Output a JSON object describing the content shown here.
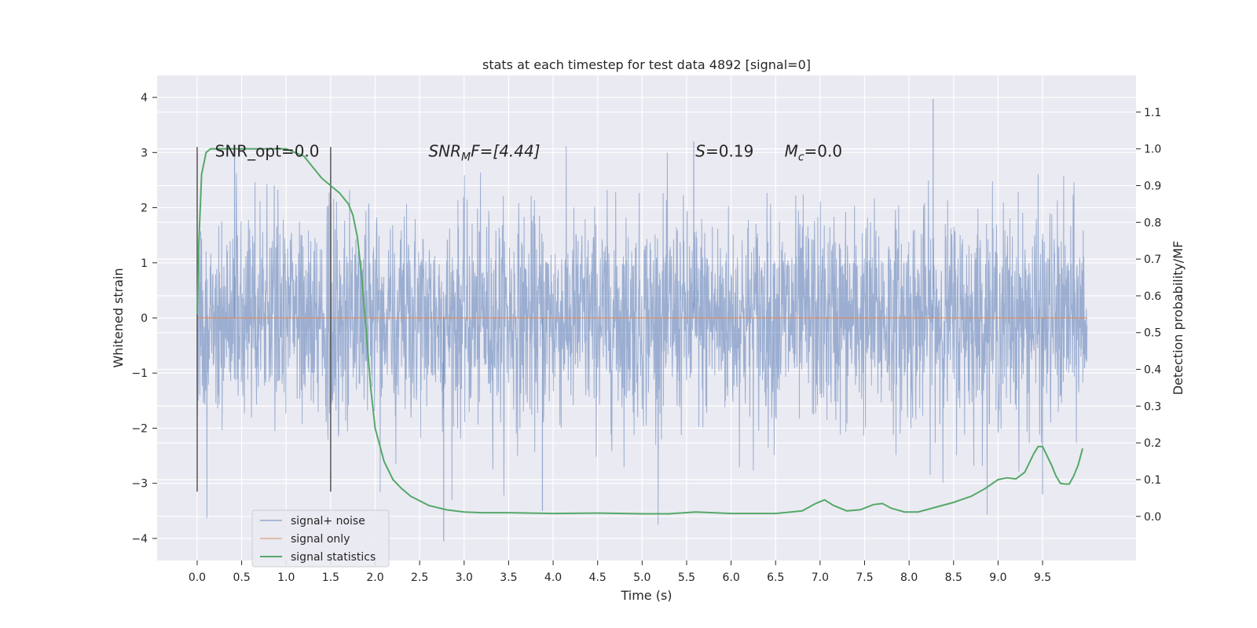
{
  "chart_data": {
    "type": "line",
    "title": "stats at each timestep for test data 4892 [signal=0]",
    "xlabel": "Time (s)",
    "ylabel": "Whitened strain",
    "y2label": "Detection probability/MF",
    "xlim": [
      -0.45,
      10.55
    ],
    "ylim": [
      -4.4,
      4.4
    ],
    "y2lim": [
      -0.12,
      1.2
    ],
    "xticks": [
      "0.0",
      "0.5",
      "1.0",
      "1.5",
      "2.0",
      "2.5",
      "3.0",
      "3.5",
      "4.0",
      "4.5",
      "5.0",
      "5.5",
      "6.0",
      "6.5",
      "7.0",
      "7.5",
      "8.0",
      "8.5",
      "9.0",
      "9.5"
    ],
    "yticks": [
      "4",
      "3",
      "2",
      "1",
      "0",
      "−1",
      "−2",
      "−3",
      "−4"
    ],
    "y2ticks": [
      "1.1",
      "1.0",
      "0.9",
      "0.8",
      "0.7",
      "0.6",
      "0.5",
      "0.4",
      "0.3",
      "0.2",
      "0.1",
      "0.0"
    ],
    "grid": true,
    "legend_position": "lower-left",
    "colors": {
      "background": "#eaeaf2",
      "noise": "#4c72b0",
      "signal": "#dd8452",
      "stats": "#55a868",
      "vline": "#555555"
    },
    "series": [
      {
        "name": "signal+ noise",
        "type": "noise",
        "x_range": [
          0.0,
          10.0
        ],
        "envelope_typical": 2.3,
        "peak_max": 3.97,
        "trough_min": -4.05
      },
      {
        "name": "signal only",
        "type": "line",
        "x": [
          0.0,
          10.0
        ],
        "y": [
          0.0,
          0.0
        ]
      },
      {
        "name": "signal statistics",
        "axis": "right",
        "type": "line",
        "x": [
          0.0,
          0.02,
          0.05,
          0.1,
          0.15,
          0.2,
          0.3,
          0.5,
          0.8,
          1.0,
          1.1,
          1.2,
          1.3,
          1.4,
          1.5,
          1.6,
          1.7,
          1.75,
          1.8,
          1.85,
          1.9,
          1.95,
          2.0,
          2.1,
          2.2,
          2.3,
          2.4,
          2.6,
          2.8,
          3.0,
          3.2,
          3.5,
          4.0,
          4.5,
          5.0,
          5.3,
          5.6,
          6.0,
          6.5,
          6.8,
          6.95,
          7.05,
          7.15,
          7.3,
          7.45,
          7.6,
          7.7,
          7.8,
          7.95,
          8.1,
          8.3,
          8.5,
          8.7,
          8.85,
          9.0,
          9.1,
          9.2,
          9.3,
          9.4,
          9.45,
          9.5,
          9.6,
          9.65,
          9.7,
          9.75,
          9.8,
          9.85,
          9.9,
          9.95
        ],
        "y": [
          0.55,
          0.75,
          0.93,
          0.99,
          1.0,
          1.0,
          1.0,
          1.0,
          1.0,
          1.0,
          0.99,
          0.98,
          0.95,
          0.92,
          0.9,
          0.88,
          0.85,
          0.82,
          0.76,
          0.65,
          0.5,
          0.35,
          0.24,
          0.15,
          0.1,
          0.075,
          0.055,
          0.03,
          0.018,
          0.012,
          0.01,
          0.01,
          0.008,
          0.009,
          0.007,
          0.007,
          0.012,
          0.008,
          0.008,
          0.015,
          0.035,
          0.045,
          0.03,
          0.015,
          0.018,
          0.032,
          0.035,
          0.022,
          0.012,
          0.012,
          0.025,
          0.038,
          0.055,
          0.075,
          0.1,
          0.105,
          0.102,
          0.12,
          0.17,
          0.19,
          0.19,
          0.14,
          0.11,
          0.09,
          0.088,
          0.088,
          0.11,
          0.14,
          0.185
        ]
      }
    ],
    "vlines": [
      {
        "x": 0.0,
        "ymin": -3.15,
        "ymax": 3.1
      },
      {
        "x": 1.5,
        "ymin": -3.15,
        "ymax": 3.1
      }
    ],
    "annotations": {
      "snr_opt": {
        "x": 0.2,
        "y": 3.0,
        "text": "SNR_opt=0.0"
      },
      "snr_mf": {
        "x": 2.6,
        "y": 3.0,
        "label": "SNR",
        "sub": "M",
        "tail": "F=[4.44]"
      },
      "s_stat": {
        "x": 5.6,
        "y": 3.0,
        "label": "S",
        "tail": "=0.19"
      },
      "mc": {
        "x": 6.6,
        "y": 3.0,
        "label": "M",
        "sub": "c",
        "tail": "=0.0"
      }
    }
  }
}
